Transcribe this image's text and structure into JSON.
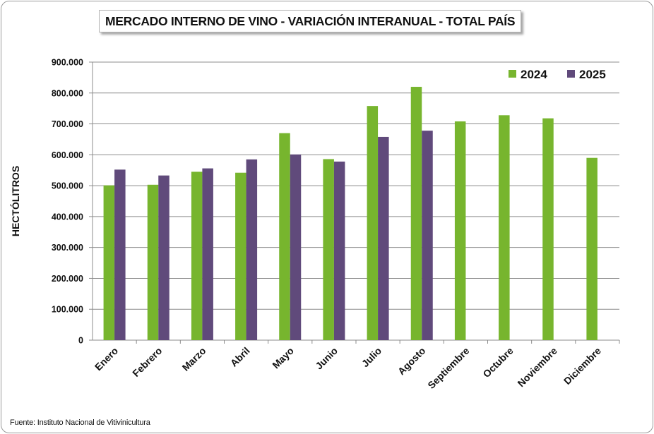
{
  "chart_data": {
    "type": "bar",
    "title": "MERCADO INTERNO DE VINO - VARIACIÓN INTERANUAL - TOTAL PAÍS",
    "xlabel": "",
    "ylabel": "HECTÓLITROS",
    "ylim": [
      0,
      900000
    ],
    "yticks": [
      "0",
      "100.000",
      "200.000",
      "300.000",
      "400.000",
      "500.000",
      "600.000",
      "700.000",
      "800.000",
      "900.000"
    ],
    "grid": true,
    "legend_position": "top-right",
    "categories": [
      "Enero",
      "Febrero",
      "Marzo",
      "Abril",
      "Mayo",
      "Junio",
      "Julio",
      "Agosto",
      "Septiembre",
      "Octubre",
      "Noviembre",
      "Diciembre"
    ],
    "series": [
      {
        "name": "2024",
        "color": "#77b52e",
        "values": [
          501000,
          503000,
          545000,
          542000,
          670000,
          586000,
          758000,
          820000,
          708000,
          728000,
          718000,
          590000
        ]
      },
      {
        "name": "2025",
        "color": "#604a7b",
        "values": [
          552000,
          533000,
          556000,
          585000,
          601000,
          578000,
          658000,
          678000,
          null,
          null,
          null,
          null
        ]
      }
    ]
  },
  "source": "Fuente: Instituto Nacional de Vitivinicultura"
}
